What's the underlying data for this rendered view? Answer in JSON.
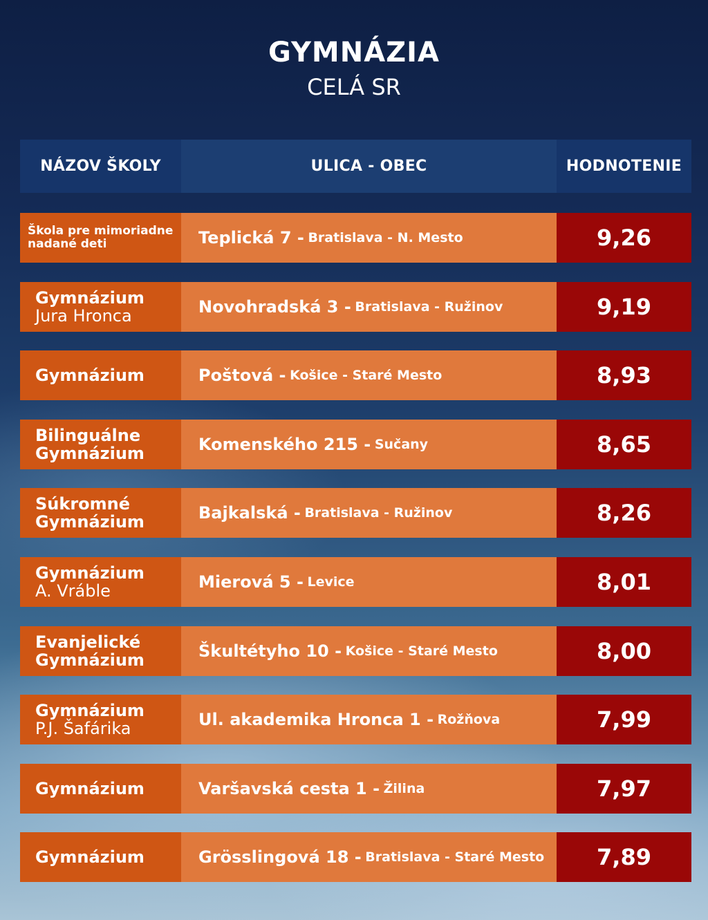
{
  "title": "GYMNÁZIA",
  "subtitle": "CELÁ SR",
  "headers": {
    "name": "NÁZOV ŠKOLY",
    "address": "ULICA - OBEC",
    "rating": "HODNOTENIE"
  },
  "rows": [
    {
      "name1": "Škola pre  mimoriadne",
      "name2": "nadané deti",
      "street": "Teplická 7 - ",
      "city": "Bratislava - N. Mesto",
      "rating": "9,26"
    },
    {
      "name1": "Gymnázium",
      "name2": "Jura Hronca",
      "street": "Novohradská 3 - ",
      "city": "Bratislava - Ružinov",
      "rating": "9,19"
    },
    {
      "name1": "Gymnázium",
      "name2": "",
      "street": "Poštová - ",
      "city": "Košice - Staré Mesto",
      "rating": "8,93"
    },
    {
      "name1": "Bilinguálne",
      "name2": "Gymnázium",
      "street": "Komenského 215 - ",
      "city": "Sučany",
      "rating": "8,65"
    },
    {
      "name1": "Súkromné",
      "name2": "Gymnázium",
      "street": "Bajkalská - ",
      "city": "Bratislava - Ružinov",
      "rating": "8,26"
    },
    {
      "name1": "Gymnázium",
      "name2": "A. Vráble",
      "street": "Mierová 5 - ",
      "city": "Levice",
      "rating": "8,01"
    },
    {
      "name1": "Evanjelické",
      "name2": "Gymnázium",
      "street": "Škultétyho 10 - ",
      "city": "Košice - Staré Mesto",
      "rating": "8,00"
    },
    {
      "name1": "Gymnázium",
      "name2": "P.J. Šafárika",
      "street": "Ul. akademika Hronca 1 - ",
      "city": "Rožňova",
      "rating": "7,99"
    },
    {
      "name1": "Gymnázium",
      "name2": "",
      "street": "Varšavská cesta 1 - ",
      "city": "Žilina",
      "rating": "7,97"
    },
    {
      "name1": "Gymnázium",
      "name2": "",
      "street": "Grösslingová 18 - ",
      "city": "Bratislava - Staré Mesto",
      "rating": "7,89"
    }
  ]
}
